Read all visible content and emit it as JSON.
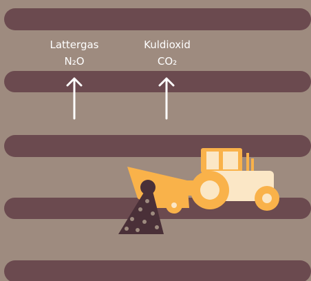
{
  "labels": [
    {
      "name": "Lattergas",
      "formula": "N₂O"
    },
    {
      "name": "Kuldioxid",
      "formula": "CO₂"
    }
  ]
}
